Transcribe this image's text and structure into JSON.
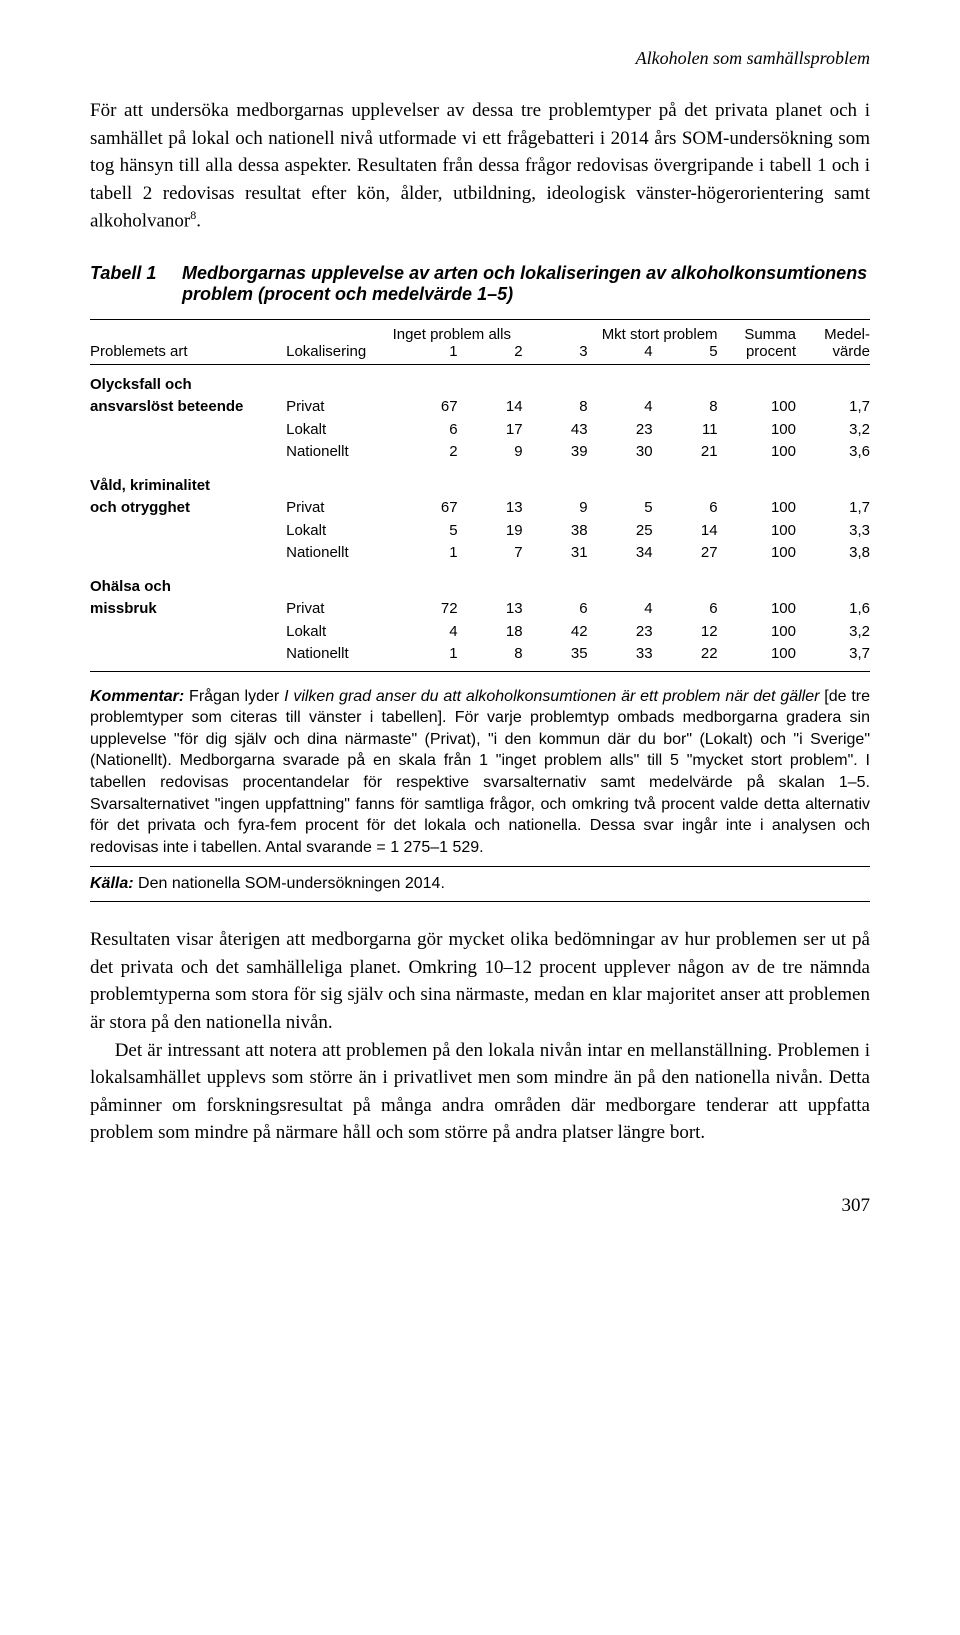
{
  "running_head": "Alkoholen som samhällsproblem",
  "intro_paragraph": "För att undersöka medborgarnas upplevelser av dessa tre problemtyper på det privata planet och i samhället på lokal och nationell nivå utformade vi ett frågebatteri i 2014 års SOM-undersökning som tog hänsyn till alla dessa aspekter. Resultaten från dessa frågor redovisas övergripande i tabell 1 och i tabell 2 redovisas resultat efter kön, ålder, utbildning, ideologisk vänster-högerorientering samt alkoholvanor",
  "intro_footnote": "8",
  "intro_end": ".",
  "table": {
    "label": "Tabell 1",
    "title": "Medborgarnas upplevelse av arten och lokaliseringen av alkoholkonsumtionens problem (procent och medelvärde 1–5)",
    "header": {
      "col1": "Problemets art",
      "col2": "Lokalisering",
      "span_left": "Inget problem alls",
      "span_right": "Mkt stort problem",
      "n1": "1",
      "n2": "2",
      "n3": "3",
      "n4": "4",
      "n5": "5",
      "sum_top": "Summa",
      "sum_bot": "procent",
      "med_top": "Medel-",
      "med_bot": "värde"
    },
    "groups": [
      {
        "label1": "Olycksfall och",
        "label2": "ansvarslöst beteende",
        "rows": [
          {
            "lok": "Privat",
            "v": [
              67,
              14,
              8,
              4,
              8
            ],
            "sum": 100,
            "med": "1,7"
          },
          {
            "lok": "Lokalt",
            "v": [
              6,
              17,
              43,
              23,
              11
            ],
            "sum": 100,
            "med": "3,2"
          },
          {
            "lok": "Nationellt",
            "v": [
              2,
              9,
              39,
              30,
              21
            ],
            "sum": 100,
            "med": "3,6"
          }
        ]
      },
      {
        "label1": "Våld, kriminalitet",
        "label2": "och otrygghet",
        "rows": [
          {
            "lok": "Privat",
            "v": [
              67,
              13,
              9,
              5,
              6
            ],
            "sum": 100,
            "med": "1,7"
          },
          {
            "lok": "Lokalt",
            "v": [
              5,
              19,
              38,
              25,
              14
            ],
            "sum": 100,
            "med": "3,3"
          },
          {
            "lok": "Nationellt",
            "v": [
              1,
              7,
              31,
              34,
              27
            ],
            "sum": 100,
            "med": "3,8"
          }
        ]
      },
      {
        "label1": "Ohälsa och",
        "label2": "missbruk",
        "rows": [
          {
            "lok": "Privat",
            "v": [
              72,
              13,
              6,
              4,
              6
            ],
            "sum": 100,
            "med": "1,6"
          },
          {
            "lok": "Lokalt",
            "v": [
              4,
              18,
              42,
              23,
              12
            ],
            "sum": 100,
            "med": "3,2"
          },
          {
            "lok": "Nationellt",
            "v": [
              1,
              8,
              35,
              33,
              22
            ],
            "sum": 100,
            "med": "3,7"
          }
        ]
      }
    ]
  },
  "kommentar": {
    "lead": "Kommentar:",
    "t1": " Frågan lyder ",
    "ital1": "I vilken grad anser du att alkoholkonsumtionen är ett problem när det gäller",
    "t2": " [de tre problemtyper som citeras till vänster i tabellen]. För varje problemtyp ombads medborgarna gradera sin upplevelse \"för dig själv och dina närmaste\" (Privat), \"i den kommun där du bor\" (Lokalt) och \"i Sverige\" (Nationellt). Medborgarna svarade på en skala från 1 \"inget problem alls\" till 5 \"mycket stort problem\". I tabellen redovisas procentandelar för respektive svarsalternativ samt medelvärde på skalan 1–5. Svarsalternativet \"ingen uppfattning\" fanns för samtliga frågor, och omkring två procent valde detta alternativ för det privata och fyra-fem procent för det lokala och nationella. Dessa svar ingår inte i analysen och redovisas inte i tabellen. Antal svarande = 1 275–1 529."
  },
  "kalla": {
    "lead": "Källa:",
    "text": " Den nationella SOM-undersökningen 2014."
  },
  "para2a": "Resultaten visar återigen att medborgarna gör mycket olika bedömningar av hur problemen ser ut på det privata och det samhälleliga planet. Omkring 10–12 procent upplever någon av de tre nämnda problemtyperna som stora för sig själv och sina närmaste, medan en klar majoritet anser att problemen är stora på den nationella nivån.",
  "para2b": "Det är intressant att notera att problemen på den lokala nivån intar en mellanställning. Problemen i lokalsamhället upplevs som större än i privatlivet men som mindre än på den nationella nivån. Detta påminner om forskningsresultat på många andra områden där medborgare tenderar att uppfatta problem som mindre på närmare håll och som större på andra platser längre bort.",
  "page_number": "307"
}
